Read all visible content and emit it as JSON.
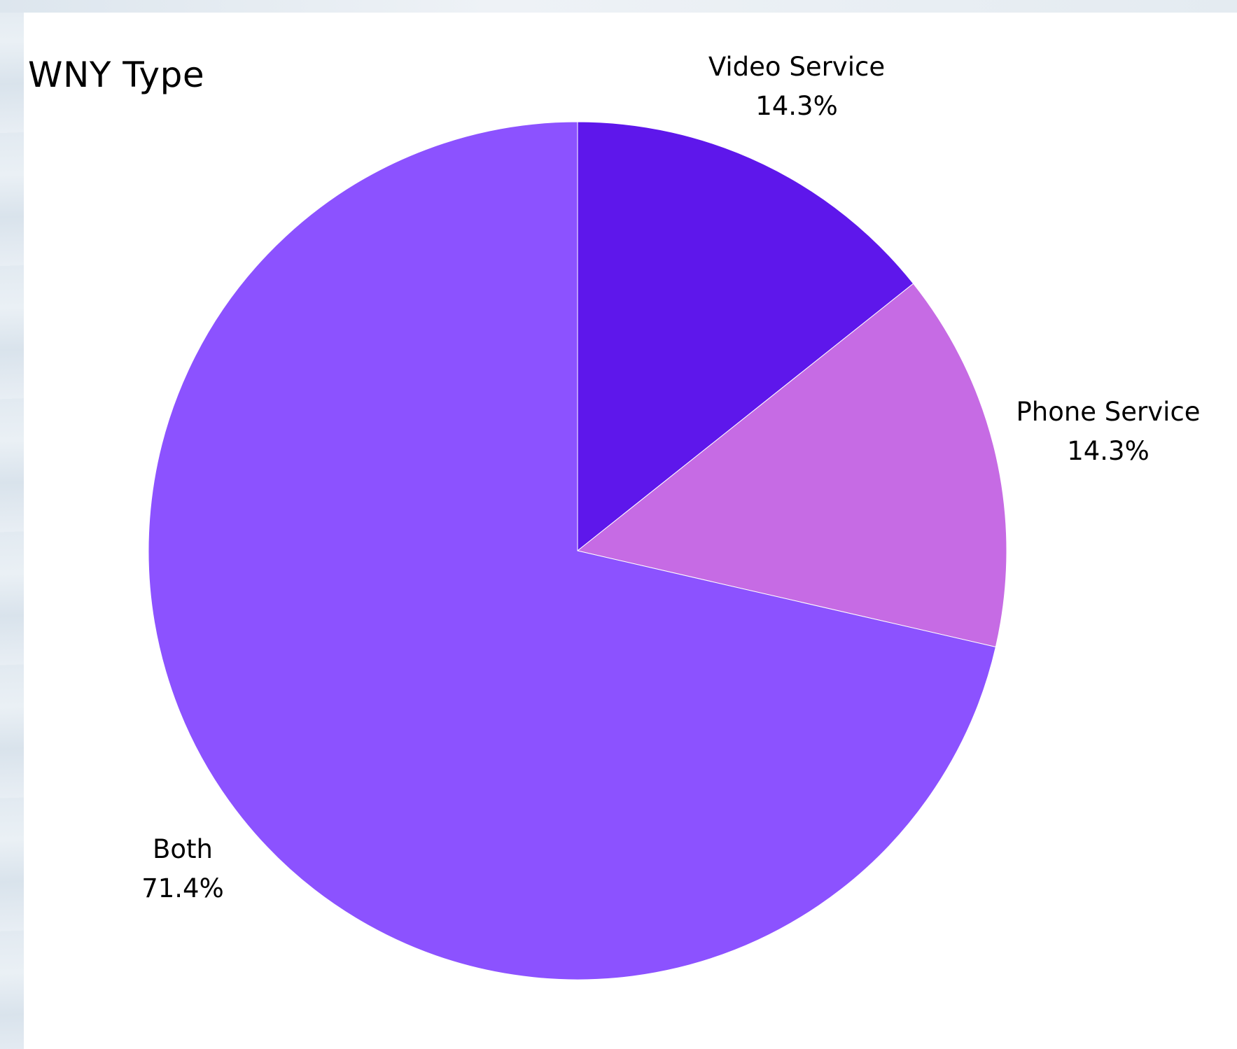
{
  "chart_data": {
    "type": "pie",
    "title": "WNY Type",
    "slices": [
      {
        "label": "Video Service",
        "value": 14.3,
        "value_label": "14.3%",
        "color": "#5e17eb"
      },
      {
        "label": "Phone Service",
        "value": 14.3,
        "value_label": "14.3%",
        "color": "#c66be4"
      },
      {
        "label": "Both",
        "value": 71.4,
        "value_label": "71.4%",
        "color": "#8c52ff"
      }
    ],
    "start": "12 o'clock",
    "direction": "clockwise",
    "labels_outside": true
  }
}
